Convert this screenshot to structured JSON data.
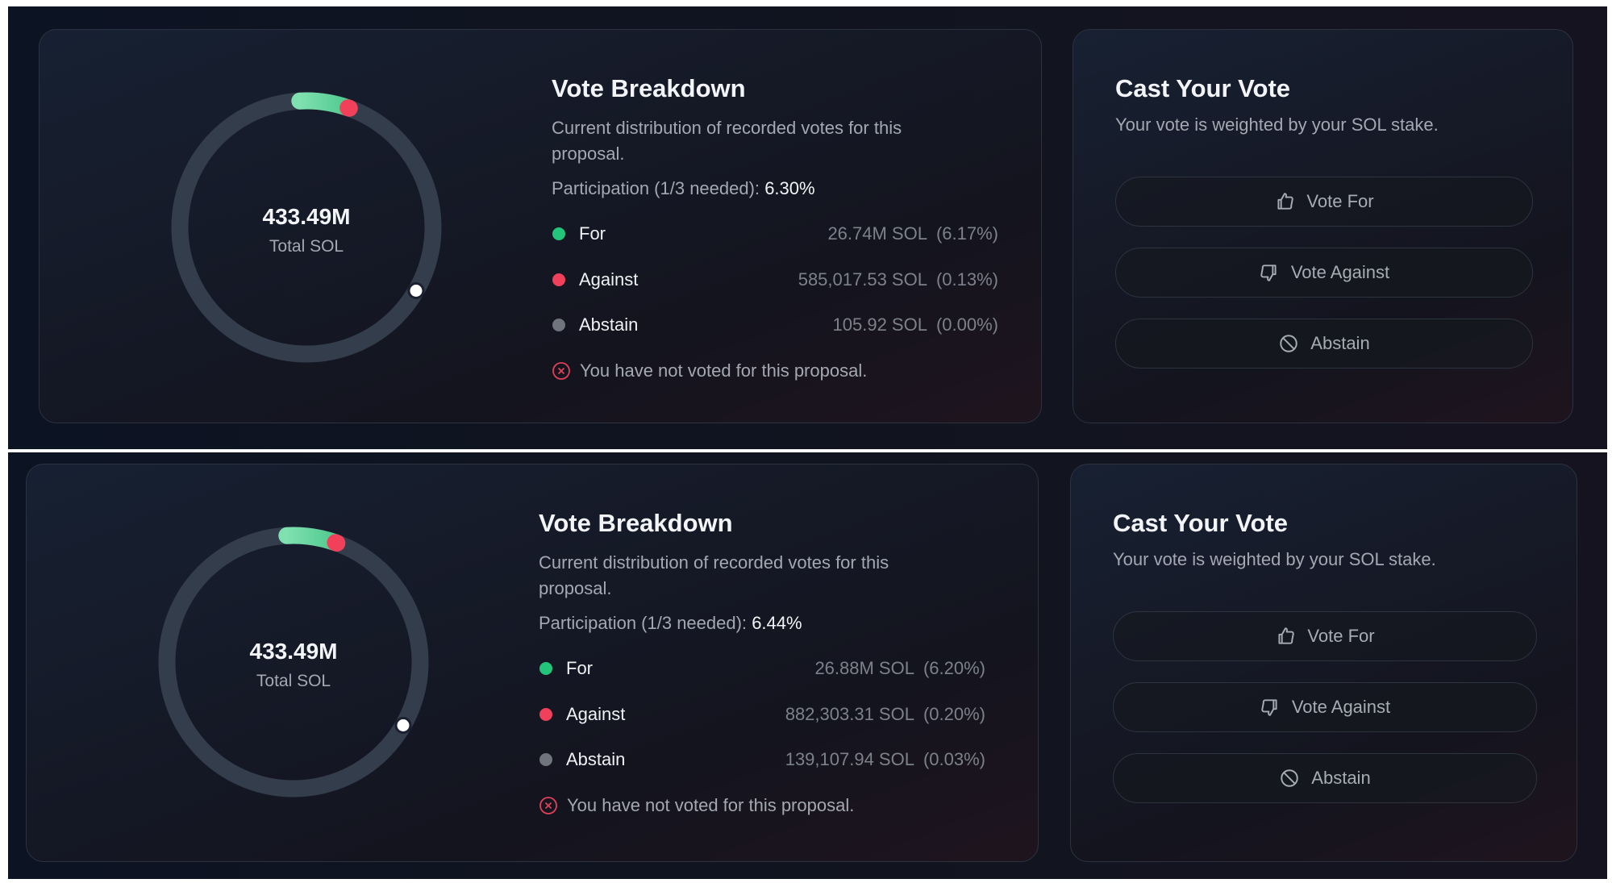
{
  "panels": [
    {
      "breakdown": {
        "total": "433.49M",
        "total_label": "Total SOL",
        "title": "Vote Breakdown",
        "description": "Current distribution of recorded votes for this proposal.",
        "participation_label": "Participation (1/3 needed):",
        "participation": "6.30%",
        "rows": [
          {
            "label": "For",
            "amount": "26.74M SOL",
            "percent": "(6.17%)"
          },
          {
            "label": "Against",
            "amount": "585,017.53 SOL",
            "percent": "(0.13%)"
          },
          {
            "label": "Abstain",
            "amount": "105.92 SOL",
            "percent": "(0.00%)"
          }
        ],
        "status": "You have not voted for this proposal."
      },
      "cast": {
        "title": "Cast Your Vote",
        "subtitle": "Your vote is weighted by your SOL stake.",
        "buttons": [
          "Vote For",
          "Vote Against",
          "Abstain"
        ]
      }
    },
    {
      "breakdown": {
        "total": "433.49M",
        "total_label": "Total SOL",
        "title": "Vote Breakdown",
        "description": "Current distribution of recorded votes for this proposal.",
        "participation_label": "Participation (1/3 needed):",
        "participation": "6.44%",
        "rows": [
          {
            "label": "For",
            "amount": "26.88M SOL",
            "percent": "(6.20%)"
          },
          {
            "label": "Against",
            "amount": "882,303.31 SOL",
            "percent": "(0.20%)"
          },
          {
            "label": "Abstain",
            "amount": "139,107.94 SOL",
            "percent": "(0.03%)"
          }
        ],
        "status": "You have not voted for this proposal."
      },
      "cast": {
        "title": "Cast Your Vote",
        "subtitle": "Your vote is weighted by your SOL stake.",
        "buttons": [
          "Vote For",
          "Vote Against",
          "Abstain"
        ]
      }
    }
  ]
}
